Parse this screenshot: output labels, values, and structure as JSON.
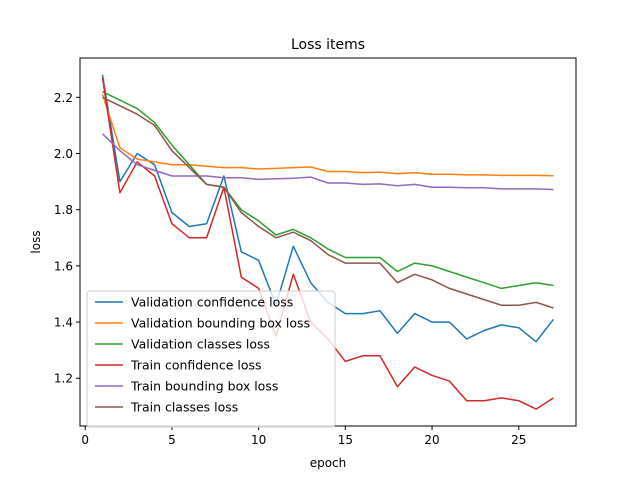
{
  "chart_data": {
    "type": "line",
    "title": "Loss items",
    "xlabel": "epoch",
    "ylabel": "loss",
    "xlim": [
      -0.3,
      28.3
    ],
    "ylim": [
      1.03,
      2.34
    ],
    "xticks": [
      0,
      5,
      10,
      15,
      20,
      25
    ],
    "yticks": [
      1.2,
      1.4,
      1.6,
      1.8,
      2.0,
      2.2
    ],
    "grid": false,
    "legend_position": "lower-left",
    "x": [
      1,
      2,
      3,
      4,
      5,
      6,
      7,
      8,
      9,
      10,
      11,
      12,
      13,
      14,
      15,
      16,
      17,
      18,
      19,
      20,
      21,
      22,
      23,
      24,
      25,
      26,
      27
    ],
    "series": [
      {
        "name": "Validation confidence loss",
        "color": "#1f77b4",
        "values": [
          2.28,
          1.9,
          2.0,
          1.96,
          1.79,
          1.74,
          1.75,
          1.92,
          1.65,
          1.62,
          1.46,
          1.67,
          1.54,
          1.47,
          1.43,
          1.43,
          1.44,
          1.36,
          1.43,
          1.4,
          1.4,
          1.34,
          1.37,
          1.39,
          1.38,
          1.33,
          1.41
        ]
      },
      {
        "name": "Validation bounding box loss",
        "color": "#ff7f0e",
        "values": [
          2.21,
          2.02,
          1.98,
          1.97,
          1.96,
          1.96,
          1.955,
          1.95,
          1.95,
          1.945,
          1.947,
          1.95,
          1.952,
          1.936,
          1.936,
          1.932,
          1.934,
          1.928,
          1.932,
          1.926,
          1.926,
          1.924,
          1.924,
          1.922,
          1.922,
          1.922,
          1.921
        ]
      },
      {
        "name": "Validation classes loss",
        "color": "#2ca02c",
        "values": [
          2.22,
          2.19,
          2.16,
          2.11,
          2.03,
          1.96,
          1.89,
          1.88,
          1.8,
          1.76,
          1.71,
          1.73,
          1.7,
          1.66,
          1.63,
          1.63,
          1.63,
          1.58,
          1.61,
          1.6,
          1.58,
          1.56,
          1.54,
          1.52,
          1.53,
          1.54,
          1.53
        ]
      },
      {
        "name": "Train confidence loss",
        "color": "#d62728",
        "values": [
          2.27,
          1.86,
          1.97,
          1.92,
          1.75,
          1.7,
          1.7,
          1.88,
          1.56,
          1.52,
          1.35,
          1.57,
          1.4,
          1.34,
          1.26,
          1.28,
          1.28,
          1.17,
          1.24,
          1.21,
          1.19,
          1.12,
          1.12,
          1.13,
          1.12,
          1.09,
          1.13
        ]
      },
      {
        "name": "Train bounding box loss",
        "color": "#9467bd",
        "values": [
          2.07,
          2.01,
          1.96,
          1.94,
          1.92,
          1.92,
          1.92,
          1.914,
          1.914,
          1.908,
          1.91,
          1.912,
          1.916,
          1.895,
          1.895,
          1.89,
          1.892,
          1.885,
          1.89,
          1.88,
          1.88,
          1.878,
          1.878,
          1.874,
          1.874,
          1.874,
          1.872
        ]
      },
      {
        "name": "Train classes loss",
        "color": "#8c564b",
        "values": [
          2.2,
          2.17,
          2.14,
          2.1,
          2.01,
          1.95,
          1.89,
          1.88,
          1.79,
          1.74,
          1.7,
          1.72,
          1.69,
          1.64,
          1.61,
          1.61,
          1.61,
          1.54,
          1.57,
          1.55,
          1.52,
          1.5,
          1.48,
          1.46,
          1.46,
          1.47,
          1.45
        ]
      }
    ]
  }
}
